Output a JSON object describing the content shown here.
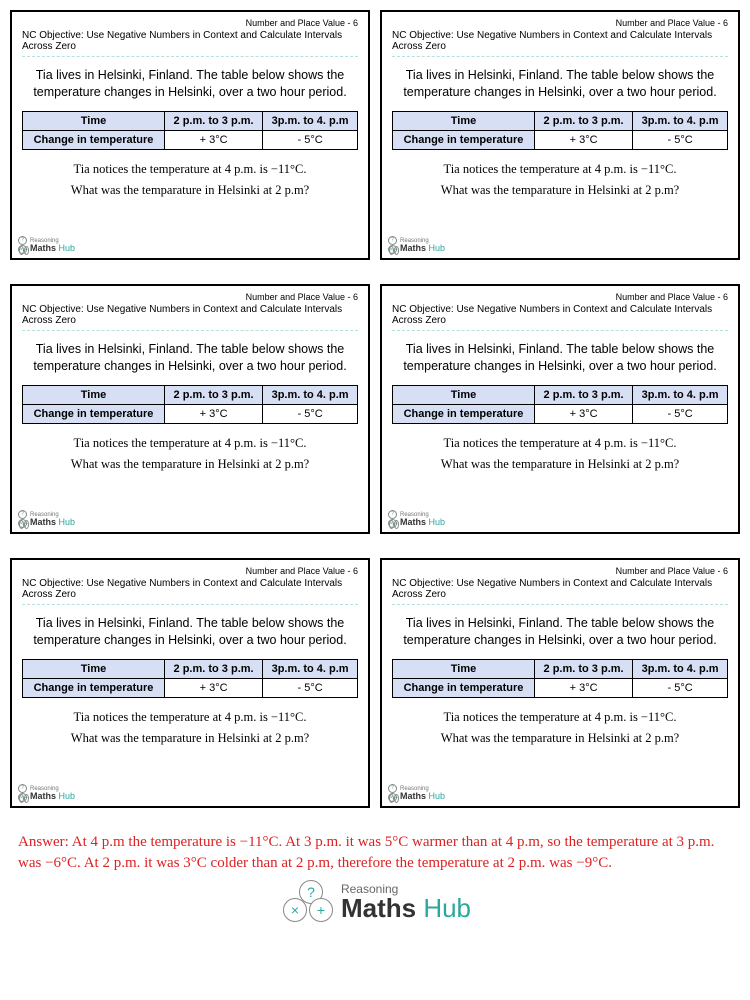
{
  "card": {
    "topic": "Number and Place Value - 6",
    "objective": "NC Objective: Use Negative Numbers in Context and Calculate Intervals Across Zero",
    "intro": "Tia lives in Helsinki, Finland. The table below shows the temperature changes in Helsinki, over a two hour period.",
    "table": {
      "h1": "Time",
      "h2": "2 p.m. to 3 p.m.",
      "h3": "3p.m. to 4. p.m",
      "r1": "Change in temperature",
      "r2": "+ 3°C",
      "r3": "- 5°C"
    },
    "notice": "Tia notices the temperature at 4 p.m. is −11°C.",
    "question": "What was the temparature in Helsinki at 2 p.m?"
  },
  "logo": {
    "reasoning": "Reasoning",
    "maths": "Maths ",
    "hub": "Hub"
  },
  "answer": "Answer: At 4 p.m the temperature is −11°C. At 3 p.m. it was 5°C warmer than at 4 p.m, so the temperature at 3 p.m. was −6°C. At 2 p.m. it was 3°C colder than at 2 p.m, therefore the temperature at 2 p.m. was −9°C."
}
